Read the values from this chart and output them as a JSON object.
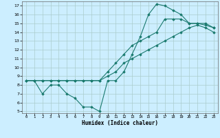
{
  "title": "",
  "xlabel": "Humidex (Indice chaleur)",
  "background_color": "#cceeff",
  "grid_color": "#aacccc",
  "line_color": "#1a7a6e",
  "line1_x": [
    0,
    1,
    2,
    3,
    4,
    5,
    6,
    7,
    8,
    9,
    10,
    11,
    12,
    13,
    14,
    15,
    16,
    17,
    18,
    19,
    20,
    21,
    22,
    23
  ],
  "line1_y": [
    8.5,
    8.5,
    7.0,
    8.0,
    8.0,
    7.0,
    6.5,
    5.5,
    5.5,
    5.0,
    8.5,
    8.5,
    9.5,
    11.5,
    13.5,
    16.0,
    17.2,
    17.0,
    16.5,
    16.0,
    15.0,
    15.0,
    14.8,
    14.5
  ],
  "line2_x": [
    0,
    1,
    2,
    3,
    4,
    5,
    6,
    7,
    8,
    9,
    10,
    11,
    12,
    13,
    14,
    15,
    16,
    17,
    18,
    19,
    20,
    21,
    22,
    23
  ],
  "line2_y": [
    8.5,
    8.5,
    8.5,
    8.5,
    8.5,
    8.5,
    8.5,
    8.5,
    8.5,
    8.5,
    9.0,
    9.5,
    10.5,
    11.0,
    11.5,
    12.0,
    12.5,
    13.0,
    13.5,
    14.0,
    14.5,
    14.8,
    14.5,
    14.0
  ],
  "line3_x": [
    0,
    1,
    2,
    3,
    4,
    5,
    6,
    7,
    8,
    9,
    10,
    11,
    12,
    13,
    14,
    15,
    16,
    17,
    18,
    19,
    20,
    21,
    22,
    23
  ],
  "line3_y": [
    8.5,
    8.5,
    8.5,
    8.5,
    8.5,
    8.5,
    8.5,
    8.5,
    8.5,
    8.5,
    9.5,
    10.5,
    11.5,
    12.5,
    13.0,
    13.5,
    14.0,
    15.5,
    15.5,
    15.5,
    15.0,
    15.0,
    15.0,
    14.5
  ],
  "ylim": [
    4.8,
    17.5
  ],
  "xlim": [
    -0.5,
    23.5
  ],
  "yticks": [
    5,
    6,
    7,
    8,
    9,
    10,
    11,
    12,
    13,
    14,
    15,
    16,
    17
  ],
  "xticks": [
    0,
    1,
    2,
    3,
    4,
    5,
    6,
    7,
    8,
    9,
    10,
    11,
    12,
    13,
    14,
    15,
    16,
    17,
    18,
    19,
    20,
    21,
    22,
    23
  ]
}
